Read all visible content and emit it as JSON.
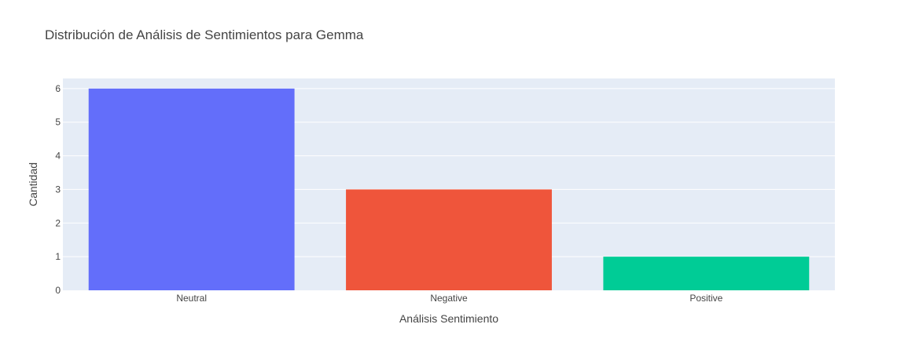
{
  "chart_data": {
    "type": "bar",
    "title": "Distribución de Análisis de Sentimientos para Gemma",
    "xlabel": "Análisis Sentimiento",
    "ylabel": "Cantidad",
    "categories": [
      "Neutral",
      "Negative",
      "Positive"
    ],
    "values": [
      6,
      3,
      1
    ],
    "colors": [
      "#636efa",
      "#EF553B",
      "#00cc96"
    ],
    "ylim": [
      0,
      6.3
    ],
    "yticks": [
      0,
      1,
      2,
      3,
      4,
      5,
      6
    ],
    "grid": true,
    "plot_background": "#e5ecf6",
    "grid_color": "#ffffff"
  }
}
